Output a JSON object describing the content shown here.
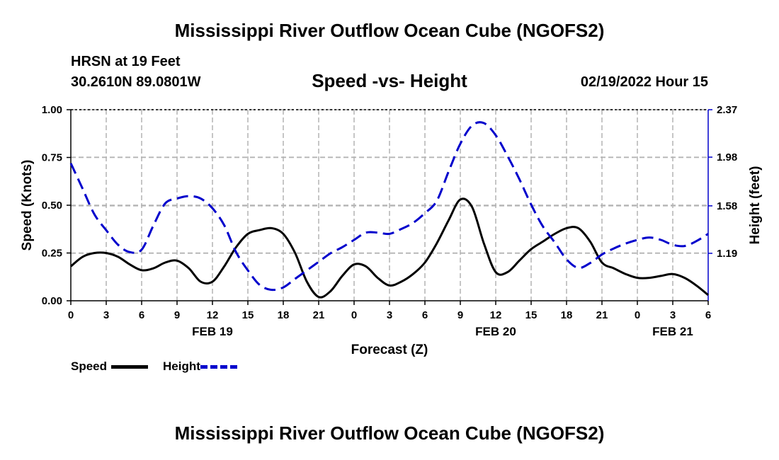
{
  "title": "Mississippi River Outflow Ocean Cube (NGOFS2)",
  "footer_title": "Mississippi River Outflow Ocean Cube (NGOFS2)",
  "station": "HRSN at 19 Feet",
  "coordinates": "30.2610N  89.0801W",
  "datetime": "02/19/2022 Hour 15",
  "legend": {
    "speed_label": "Speed",
    "height_label": "Height"
  },
  "colors": {
    "speed": "#000000",
    "height": "#0000cc",
    "grid": "#b4b4b4"
  },
  "chart_data": {
    "type": "line",
    "title": "Speed -vs- Height",
    "xlabel": "Forecast (Z)",
    "ylabel": "Speed (Knots)",
    "y2label": "Height (feet)",
    "xlim": [
      0,
      54
    ],
    "ylim": [
      0,
      1
    ],
    "y2lim": [
      0.8,
      2.37
    ],
    "x_ticks": [
      0,
      3,
      6,
      9,
      12,
      15,
      18,
      21,
      24,
      27,
      30,
      33,
      36,
      39,
      42,
      45,
      48,
      51,
      54
    ],
    "x_tick_labels": [
      "0",
      "3",
      "6",
      "9",
      "12",
      "15",
      "18",
      "21",
      "0",
      "3",
      "6",
      "9",
      "12",
      "15",
      "18",
      "21",
      "0",
      "3",
      "6"
    ],
    "date_labels": [
      {
        "x": 12,
        "label": "FEB 19"
      },
      {
        "x": 36,
        "label": "FEB 20"
      },
      {
        "x": 51,
        "label": "FEB 21"
      }
    ],
    "y_ticks": [
      0,
      0.25,
      0.5,
      0.75,
      1.0
    ],
    "y_tick_labels": [
      "0.00",
      "0.25",
      "0.50",
      "0.75",
      "1.00"
    ],
    "y2_ticks": [
      1.19,
      1.58,
      1.98,
      2.37
    ],
    "y2_tick_labels": [
      "1.19",
      "1.58",
      "1.98",
      "2.37"
    ],
    "series": [
      {
        "name": "Speed",
        "axis": "left",
        "style": "solid",
        "x": [
          0,
          1,
          2,
          3,
          4,
          5,
          6,
          7,
          8,
          9,
          10,
          11,
          12,
          13,
          14,
          15,
          16,
          17,
          18,
          19,
          20,
          21,
          22,
          23,
          24,
          25,
          26,
          27,
          28,
          29,
          30,
          31,
          32,
          33,
          34,
          35,
          36,
          37,
          38,
          39,
          40,
          41,
          42,
          43,
          44,
          45,
          46,
          47,
          48,
          49,
          50,
          51,
          52,
          53,
          54
        ],
        "values": [
          0.18,
          0.23,
          0.25,
          0.25,
          0.23,
          0.19,
          0.16,
          0.17,
          0.2,
          0.21,
          0.17,
          0.1,
          0.1,
          0.18,
          0.28,
          0.35,
          0.37,
          0.38,
          0.35,
          0.25,
          0.1,
          0.02,
          0.05,
          0.13,
          0.19,
          0.18,
          0.12,
          0.08,
          0.1,
          0.14,
          0.2,
          0.3,
          0.42,
          0.53,
          0.49,
          0.3,
          0.15,
          0.15,
          0.21,
          0.27,
          0.31,
          0.35,
          0.38,
          0.38,
          0.31,
          0.2,
          0.17,
          0.14,
          0.12,
          0.12,
          0.13,
          0.14,
          0.12,
          0.08,
          0.03
        ]
      },
      {
        "name": "Height",
        "axis": "right",
        "style": "dashed",
        "x": [
          0,
          1,
          2,
          3,
          4,
          5,
          6,
          7,
          8,
          9,
          10,
          11,
          12,
          13,
          14,
          15,
          16,
          17,
          18,
          19,
          20,
          21,
          22,
          23,
          24,
          25,
          26,
          27,
          28,
          29,
          30,
          31,
          32,
          33,
          34,
          35,
          36,
          37,
          38,
          39,
          40,
          41,
          42,
          43,
          44,
          45,
          46,
          47,
          48,
          49,
          50,
          51,
          52,
          53,
          54
        ],
        "values": [
          1.93,
          1.72,
          1.51,
          1.38,
          1.26,
          1.2,
          1.22,
          1.42,
          1.6,
          1.64,
          1.66,
          1.64,
          1.56,
          1.42,
          1.2,
          1.05,
          0.93,
          0.89,
          0.91,
          0.98,
          1.05,
          1.12,
          1.19,
          1.24,
          1.3,
          1.36,
          1.36,
          1.35,
          1.39,
          1.44,
          1.52,
          1.62,
          1.86,
          2.09,
          2.24,
          2.26,
          2.16,
          1.99,
          1.8,
          1.59,
          1.41,
          1.28,
          1.14,
          1.07,
          1.11,
          1.18,
          1.23,
          1.27,
          1.3,
          1.32,
          1.3,
          1.26,
          1.25,
          1.29,
          1.35
        ]
      }
    ]
  }
}
